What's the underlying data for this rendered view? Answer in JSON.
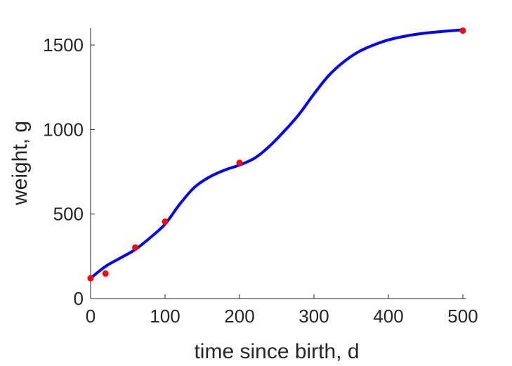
{
  "chart_data": {
    "type": "scatter",
    "title": "",
    "xlabel": "time since birth, d",
    "ylabel": "weight, g",
    "xlim": [
      0,
      500
    ],
    "ylim": [
      0,
      1600
    ],
    "xticks": [
      0,
      100,
      200,
      300,
      400,
      500
    ],
    "yticks": [
      0,
      500,
      1000,
      1500
    ],
    "grid": false,
    "series": [
      {
        "kind": "scatter",
        "color": "#ff0000",
        "x": [
          0,
          20,
          60,
          100,
          200,
          500
        ],
        "y": [
          120,
          148,
          302,
          455,
          803,
          1585
        ]
      },
      {
        "kind": "line",
        "color": "#0000ff",
        "x": [
          0,
          20,
          40,
          60,
          80,
          100,
          120,
          140,
          160,
          180,
          200,
          220,
          240,
          260,
          280,
          300,
          320,
          340,
          360,
          380,
          400,
          420,
          440,
          460,
          480,
          500
        ],
        "y": [
          120,
          190,
          240,
          290,
          360,
          440,
          560,
          660,
          720,
          760,
          790,
          830,
          900,
          990,
          1090,
          1210,
          1320,
          1400,
          1460,
          1500,
          1530,
          1550,
          1565,
          1575,
          1583,
          1590
        ]
      }
    ]
  }
}
